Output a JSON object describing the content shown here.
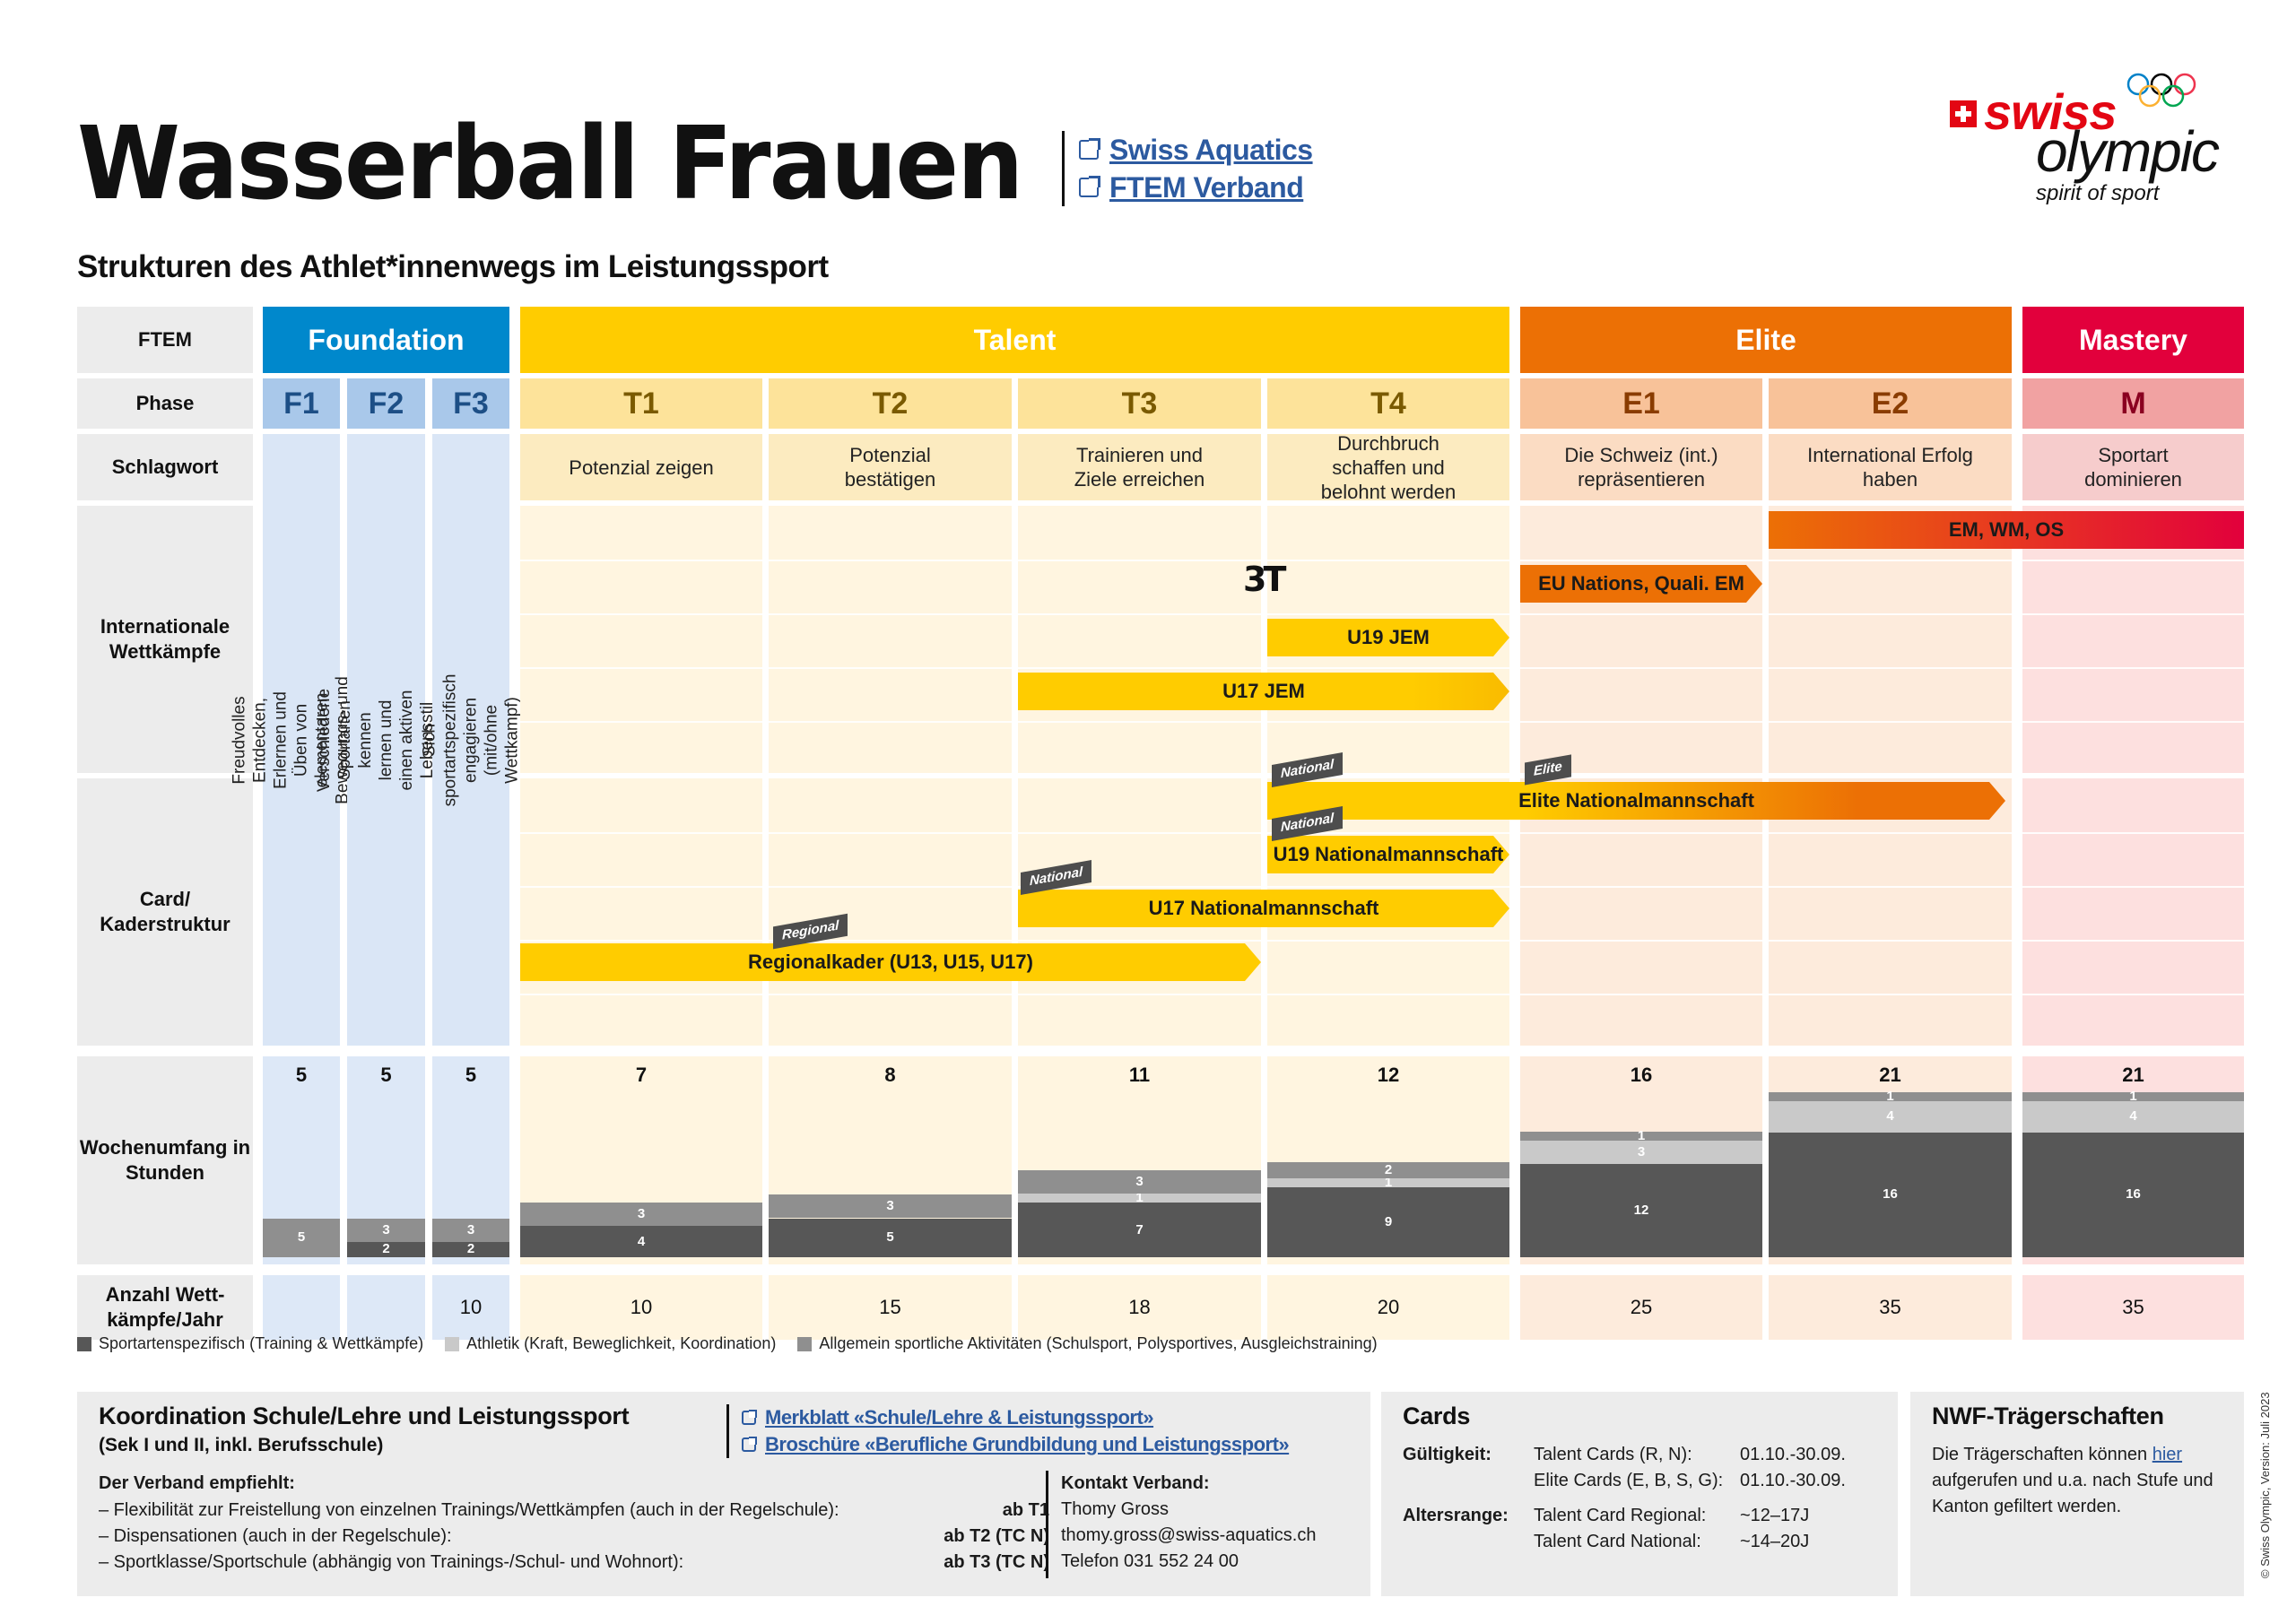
{
  "header": {
    "title": "Wasserball Frauen",
    "subtitle": "Strukturen des Athlet*innenwegs im Leistungssport",
    "links": [
      {
        "label": "Swiss Aquatics",
        "icon": "external-link-icon"
      },
      {
        "label": "FTEM Verband",
        "icon": "external-link-icon"
      }
    ]
  },
  "logo": {
    "swiss": "swiss",
    "olympic": "olympic",
    "tagline": "spirit of sport"
  },
  "row_labels": {
    "ftem": "FTEM",
    "phase": "Phase",
    "schlagwort": "Schlagwort",
    "international": "Internationale Wettkämpfe",
    "card": "Card/ Kaderstruktur",
    "wochenumfang": "Wochenumfang in Stunden",
    "wettkaempfe": "Anzahl Wett-kämpfe/Jahr"
  },
  "ftem": [
    {
      "label": "Foundation",
      "color": "#0088cc"
    },
    {
      "label": "Talent",
      "color": "#ffcc00"
    },
    {
      "label": "Elite",
      "color": "#ec7005"
    },
    {
      "label": "Mastery",
      "color": "#e2003c"
    }
  ],
  "phases": [
    {
      "label": "F1",
      "schlagwort": "Freudvolles Entdecken, Erlernen und Üben von elementaren Bewegungs- und Spielgrundformen",
      "vertical": true
    },
    {
      "label": "F2",
      "schlagwort": "Verschiedene Sportarten kennen lernen und einen aktiven Lebensstil pflegen",
      "vertical": true
    },
    {
      "label": "F3",
      "schlagwort": "Sich sportartspezifisch engagieren (mit/ohne Wettkampf)",
      "vertical": true
    },
    {
      "label": "T1",
      "schlagwort": "Potenzial zeigen"
    },
    {
      "label": "T2",
      "schlagwort": "Potenzial bestätigen"
    },
    {
      "label": "T3",
      "schlagwort": "Trainieren und Ziele erreichen"
    },
    {
      "label": "T4",
      "schlagwort": "Durchbruch schaffen und belohnt werden"
    },
    {
      "label": "E1",
      "schlagwort": "Die Schweiz (int.) repräsentieren"
    },
    {
      "label": "E2",
      "schlagwort": "International Erfolg haben"
    },
    {
      "label": "M",
      "schlagwort": "Sportart dominieren"
    }
  ],
  "international": [
    {
      "label": "EM, WM, OS",
      "from": "E2",
      "to": "M"
    },
    {
      "label": "EU Nations, Quali. EM",
      "from": "E1",
      "to": "E1"
    },
    {
      "label": "U19 JEM",
      "from": "T4",
      "to": "T4"
    },
    {
      "label": "U17 JEM",
      "from": "T3",
      "to": "T4"
    }
  ],
  "icon_3t": "3T",
  "cards": [
    {
      "label": "Elite Nationalmannschaft",
      "tags": [
        "National",
        "Elite"
      ]
    },
    {
      "label": "U19 Nationalmannschaft",
      "tags": [
        "National"
      ]
    },
    {
      "label": "U17 Nationalmannschaft",
      "tags": [
        "National"
      ]
    },
    {
      "label": "Regionalkader (U13, U15, U17)",
      "tags": [
        "Regional"
      ]
    }
  ],
  "chart_data": {
    "type": "bar",
    "title": "Wochenumfang in Stunden",
    "categories": [
      "F1",
      "F2",
      "F3",
      "T1",
      "T2",
      "T3",
      "T4",
      "E1",
      "E2",
      "M"
    ],
    "totals": [
      5,
      5,
      5,
      7,
      8,
      11,
      12,
      16,
      21,
      21
    ],
    "series": [
      {
        "name": "Sportartenspezifisch (Training & Wettkämpfe)",
        "color": "#575757",
        "values": [
          0,
          2,
          2,
          4,
          5,
          7,
          9,
          12,
          16,
          16
        ]
      },
      {
        "name": "Athletik (Kraft, Beweglichkeit, Koordination)",
        "color": "#c9c9c9",
        "values": [
          0,
          0,
          0,
          0,
          0,
          1,
          1,
          3,
          4,
          4
        ]
      },
      {
        "name": "Allgemein sportliche Aktivitäten (Schulsport, Polysportives, Ausgleichstraining)",
        "color": "#8f8f8f",
        "values": [
          5,
          3,
          3,
          3,
          3,
          3,
          2,
          1,
          1,
          1
        ]
      }
    ],
    "ylim": [
      0,
      21
    ],
    "legend": "bottom-left"
  },
  "wettkaempfe": [
    "",
    "",
    "10",
    "10",
    "15",
    "18",
    "20",
    "25",
    "35",
    "35"
  ],
  "legend": [
    "Sportartenspezifisch (Training & Wettkämpfe)",
    "Athletik (Kraft, Beweglichkeit, Koordination)",
    "Allgemein sportliche Aktivitäten (Schulsport, Polysportives, Ausgleichstraining)"
  ],
  "school": {
    "title": "Koordination Schule/Lehre und Leistungssport",
    "subtitle": "(Sek I und II, inkl. Berufsschule)",
    "links": [
      "Merkblatt «Schule/Lehre & Leistungssport»",
      "Broschüre «Berufliche Grundbildung und Leistungssport»"
    ],
    "recommend_title": "Der Verband empfiehlt:",
    "items": [
      {
        "text": "– Flexibilität zur Freistellung von einzelnen Trainings/Wettkämpfen (auch in der Regelschule):",
        "level": "ab T1"
      },
      {
        "text": "– Dispensationen (auch in der Regelschule):",
        "level": "ab T2 (TC N)"
      },
      {
        "text": "– Sportklasse/Sportschule (abhängig von Trainings-/Schul- und Wohnort):",
        "level": "ab T3 (TC N)"
      }
    ],
    "contact_title": "Kontakt Verband:",
    "contact_name": "Thomy Gross",
    "contact_email": "thomy.gross@swiss-aquatics.ch",
    "contact_phone": "Telefon 031 552 24 00"
  },
  "cards_box": {
    "title": "Cards",
    "validity_label": "Gültigkeit:",
    "validity": [
      {
        "name": "Talent Cards (R, N):",
        "value": "01.10.-30.09."
      },
      {
        "name": "Elite Cards (E, B, S, G):",
        "value": "01.10.-30.09."
      }
    ],
    "age_label": "Altersrange:",
    "ages": [
      {
        "name": "Talent Card Regional:",
        "value": "~12–17J"
      },
      {
        "name": "Talent Card National:",
        "value": "~14–20J"
      }
    ]
  },
  "nwf": {
    "title": "NWF-Trägerschaften",
    "text_before": "Die Trägerschaften können ",
    "link": "hier",
    "text_after": " aufgerufen und u.a. nach Stufe und Kanton gefiltert werden."
  },
  "copyright": "© Swiss Olympic, Version: Juli 2023"
}
